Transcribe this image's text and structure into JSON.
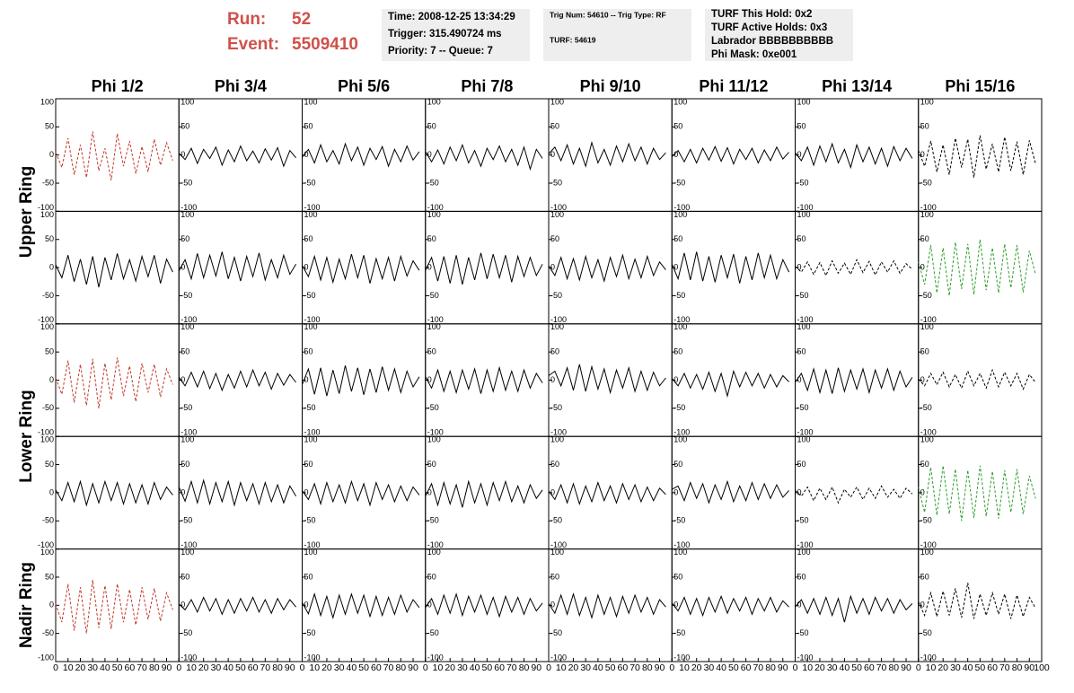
{
  "header": {
    "run_label": "Run:",
    "run": 52,
    "event_label": "Event:",
    "event": 5509410,
    "box1": [
      "Time: 2008-12-25 13:34:29",
      "Trigger: 315.490724 ms",
      "Priority: 7 -- Queue: 7"
    ],
    "box2": [
      "Trig Num: 54610 -- Trig Type: RF",
      "TURF: 54619"
    ],
    "box3": [
      "TURF This Hold: 0x2",
      "TURF Active Holds: 0x3",
      "Labrador BBBBBBBBBB",
      "Phi Mask: 0xe001"
    ]
  },
  "chart_data": {
    "type": "line",
    "columns": [
      "Phi 1/2",
      "Phi 3/4",
      "Phi 5/6",
      "Phi 7/8",
      "Phi 9/10",
      "Phi 11/12",
      "Phi 13/14",
      "Phi 15/16"
    ],
    "row_labels": [
      "Upper Ring",
      "Lower Ring",
      "Nadir Ring"
    ],
    "xlim": [
      0,
      100
    ],
    "xticks": [
      0,
      10,
      20,
      30,
      40,
      50,
      60,
      70,
      80,
      90,
      100
    ],
    "ylim": [
      -100,
      100
    ],
    "yticks": [
      -100,
      -50,
      0,
      50,
      100
    ],
    "x": [
      0,
      5,
      10,
      15,
      20,
      25,
      30,
      35,
      40,
      45,
      50,
      55,
      60,
      65,
      70,
      75,
      80,
      85,
      90,
      95
    ],
    "panels": [
      [
        {
          "color": "#c0392b",
          "dashed": true,
          "values": [
            5,
            -22,
            30,
            -35,
            18,
            -40,
            42,
            -28,
            12,
            -45,
            38,
            -20,
            25,
            -33,
            15,
            -30,
            28,
            -18,
            22,
            -10
          ]
        },
        {
          "color": "#000000",
          "dashed": false,
          "values": [
            3,
            -8,
            12,
            -15,
            10,
            -6,
            14,
            -18,
            9,
            -12,
            16,
            -10,
            7,
            -14,
            11,
            -9,
            13,
            -20,
            8,
            -5
          ]
        },
        {
          "color": "#000000",
          "dashed": false,
          "values": [
            -4,
            10,
            -14,
            18,
            -12,
            8,
            -16,
            20,
            -10,
            14,
            -18,
            12,
            -8,
            15,
            -20,
            10,
            -12,
            16,
            -9,
            6
          ]
        },
        {
          "color": "#000000",
          "dashed": false,
          "values": [
            6,
            -12,
            9,
            -16,
            14,
            -10,
            18,
            -14,
            8,
            -20,
            12,
            -8,
            16,
            -12,
            10,
            -18,
            14,
            -25,
            10,
            -6
          ]
        },
        {
          "color": "#000000",
          "dashed": false,
          "values": [
            2,
            14,
            -10,
            18,
            -16,
            12,
            -20,
            22,
            -14,
            10,
            -18,
            16,
            -12,
            20,
            -10,
            14,
            -16,
            12,
            -8,
            4
          ]
        },
        {
          "color": "#000000",
          "dashed": false,
          "values": [
            -3,
            8,
            -12,
            10,
            -14,
            12,
            -9,
            15,
            -11,
            13,
            -16,
            10,
            -8,
            12,
            -14,
            9,
            -10,
            14,
            -7,
            5
          ]
        },
        {
          "color": "#000000",
          "dashed": false,
          "values": [
            4,
            -10,
            14,
            -18,
            16,
            -12,
            20,
            -14,
            10,
            -22,
            18,
            -12,
            14,
            -16,
            12,
            -20,
            15,
            -10,
            12,
            -6
          ]
        },
        {
          "color": "#000000",
          "dashed": true,
          "values": [
            8,
            -20,
            25,
            -30,
            18,
            -35,
            30,
            -22,
            28,
            -40,
            35,
            -25,
            20,
            -30,
            32,
            -28,
            24,
            -35,
            26,
            -15
          ]
        }
      ],
      [
        {
          "color": "#000000",
          "dashed": false,
          "values": [
            5,
            -18,
            22,
            -25,
            15,
            -30,
            20,
            -35,
            18,
            -22,
            25,
            -20,
            14,
            -24,
            20,
            -16,
            22,
            -28,
            15,
            -8
          ]
        },
        {
          "color": "#000000",
          "dashed": false,
          "values": [
            -6,
            14,
            -20,
            25,
            -18,
            22,
            -15,
            28,
            -20,
            18,
            -24,
            20,
            -16,
            26,
            -22,
            14,
            -18,
            22,
            -12,
            6
          ]
        },
        {
          "color": "#000000",
          "dashed": false,
          "values": [
            4,
            -16,
            20,
            -22,
            18,
            -26,
            15,
            -20,
            24,
            -18,
            22,
            -28,
            16,
            -20,
            18,
            -24,
            20,
            -15,
            12,
            -5
          ]
        },
        {
          "color": "#000000",
          "dashed": false,
          "values": [
            -5,
            18,
            -24,
            20,
            -28,
            22,
            -30,
            18,
            -22,
            26,
            -20,
            24,
            -18,
            22,
            -26,
            20,
            -16,
            18,
            -14,
            6
          ]
        },
        {
          "color": "#000000",
          "dashed": false,
          "values": [
            3,
            -14,
            18,
            -20,
            16,
            -22,
            20,
            -18,
            14,
            -24,
            18,
            -16,
            22,
            -20,
            15,
            -18,
            20,
            -14,
            10,
            -4
          ]
        },
        {
          "color": "#000000",
          "dashed": false,
          "values": [
            6,
            -20,
            26,
            -22,
            28,
            -24,
            20,
            -26,
            22,
            -18,
            24,
            -28,
            20,
            -22,
            26,
            -18,
            22,
            -20,
            14,
            -8
          ]
        },
        {
          "color": "#000000",
          "dashed": true,
          "values": [
            2,
            -8,
            10,
            -12,
            9,
            -14,
            12,
            -10,
            8,
            -12,
            14,
            -9,
            11,
            -13,
            10,
            -8,
            12,
            -10,
            7,
            -3
          ]
        },
        {
          "color": "#2e9e2e",
          "dashed": true,
          "values": [
            10,
            -30,
            40,
            -45,
            35,
            -50,
            45,
            -38,
            42,
            -48,
            50,
            -40,
            35,
            -45,
            42,
            -36,
            40,
            -44,
            30,
            -12
          ]
        }
      ],
      [
        {
          "color": "#c0392b",
          "dashed": true,
          "values": [
            4,
            -25,
            35,
            -40,
            28,
            -45,
            38,
            -50,
            30,
            -35,
            40,
            -28,
            25,
            -38,
            30,
            -22,
            28,
            -30,
            20,
            -8
          ]
        },
        {
          "color": "#000000",
          "dashed": false,
          "values": [
            5,
            -10,
            14,
            -12,
            16,
            -15,
            12,
            -18,
            10,
            -14,
            16,
            -12,
            18,
            -10,
            14,
            -16,
            12,
            -9,
            10,
            -4
          ]
        },
        {
          "color": "#000000",
          "dashed": false,
          "values": [
            -8,
            20,
            -25,
            22,
            -28,
            18,
            -24,
            26,
            -20,
            22,
            -26,
            20,
            -22,
            24,
            -18,
            20,
            -22,
            16,
            -12,
            6
          ]
        },
        {
          "color": "#000000",
          "dashed": false,
          "values": [
            6,
            -14,
            18,
            -20,
            16,
            -22,
            18,
            -16,
            20,
            -24,
            18,
            -20,
            22,
            -18,
            16,
            -20,
            18,
            -14,
            12,
            -5
          ]
        },
        {
          "color": "#000000",
          "dashed": false,
          "values": [
            8,
            16,
            -10,
            22,
            -18,
            28,
            -20,
            24,
            -16,
            20,
            -22,
            18,
            -14,
            22,
            -20,
            16,
            -18,
            14,
            -10,
            4
          ]
        },
        {
          "color": "#000000",
          "dashed": false,
          "values": [
            3,
            -10,
            12,
            -14,
            10,
            -16,
            14,
            -20,
            12,
            -28,
            16,
            -12,
            14,
            -10,
            12,
            -14,
            10,
            -12,
            8,
            -3
          ]
        },
        {
          "color": "#000000",
          "dashed": false,
          "values": [
            -4,
            12,
            -18,
            20,
            -22,
            18,
            -24,
            22,
            -20,
            18,
            -16,
            20,
            -22,
            18,
            -14,
            20,
            -18,
            16,
            -12,
            5
          ]
        },
        {
          "color": "#000000",
          "dashed": true,
          "values": [
            2,
            -10,
            12,
            -8,
            14,
            -12,
            10,
            -14,
            16,
            -10,
            12,
            -14,
            18,
            -12,
            14,
            -10,
            12,
            -16,
            10,
            -4
          ]
        }
      ],
      [
        {
          "color": "#000000",
          "dashed": false,
          "values": [
            5,
            -14,
            18,
            -16,
            20,
            -22,
            16,
            -18,
            20,
            -14,
            18,
            -20,
            16,
            -18,
            14,
            -20,
            18,
            -12,
            10,
            -4
          ]
        },
        {
          "color": "#000000",
          "dashed": false,
          "values": [
            10,
            -15,
            20,
            -18,
            22,
            -20,
            18,
            -16,
            20,
            -22,
            18,
            -14,
            16,
            -20,
            18,
            -16,
            14,
            -18,
            12,
            -6
          ]
        },
        {
          "color": "#000000",
          "dashed": false,
          "values": [
            4,
            -12,
            16,
            -20,
            18,
            -16,
            14,
            -18,
            20,
            -14,
            16,
            -22,
            18,
            -12,
            14,
            -16,
            12,
            -14,
            10,
            -4
          ]
        },
        {
          "color": "#000000",
          "dashed": false,
          "values": [
            -6,
            16,
            -22,
            18,
            -20,
            14,
            -26,
            20,
            -18,
            16,
            -22,
            18,
            -14,
            20,
            -16,
            12,
            -18,
            14,
            -10,
            5
          ]
        },
        {
          "color": "#000000",
          "dashed": false,
          "values": [
            3,
            -12,
            14,
            -18,
            16,
            -20,
            12,
            -16,
            18,
            -14,
            12,
            -18,
            16,
            -12,
            14,
            -16,
            10,
            -14,
            8,
            -3
          ]
        },
        {
          "color": "#000000",
          "dashed": false,
          "values": [
            6,
            12,
            -14,
            18,
            -10,
            16,
            -18,
            14,
            -12,
            20,
            -16,
            12,
            -14,
            18,
            -12,
            16,
            -10,
            14,
            -8,
            4
          ]
        },
        {
          "color": "#000000",
          "dashed": true,
          "values": [
            4,
            -6,
            10,
            -14,
            8,
            -12,
            10,
            -18,
            6,
            -8,
            10,
            -12,
            8,
            -10,
            12,
            -8,
            6,
            -10,
            8,
            -2
          ]
        },
        {
          "color": "#2e9e2e",
          "dashed": true,
          "values": [
            10,
            -35,
            45,
            -40,
            48,
            -38,
            42,
            -50,
            40,
            -45,
            48,
            -42,
            38,
            -46,
            40,
            -35,
            42,
            -38,
            30,
            -10
          ]
        }
      ],
      [
        {
          "color": "#c0392b",
          "dashed": true,
          "values": [
            3,
            -30,
            38,
            -45,
            32,
            -50,
            45,
            -40,
            35,
            -42,
            38,
            -30,
            28,
            -35,
            32,
            -25,
            30,
            -28,
            22,
            -8
          ]
        },
        {
          "color": "#000000",
          "dashed": false,
          "values": [
            2,
            -8,
            10,
            -12,
            14,
            -10,
            12,
            -16,
            10,
            -14,
            12,
            -10,
            14,
            -12,
            10,
            -14,
            12,
            -8,
            10,
            -3
          ]
        },
        {
          "color": "#000000",
          "dashed": false,
          "values": [
            5,
            -15,
            20,
            -18,
            16,
            -22,
            18,
            -16,
            20,
            -14,
            18,
            -20,
            16,
            -18,
            14,
            -16,
            18,
            -12,
            10,
            -4
          ]
        },
        {
          "color": "#000000",
          "dashed": false,
          "values": [
            -4,
            12,
            -16,
            18,
            -14,
            20,
            -18,
            16,
            -12,
            18,
            -16,
            14,
            -20,
            16,
            -12,
            14,
            -16,
            12,
            -10,
            4
          ]
        },
        {
          "color": "#000000",
          "dashed": false,
          "values": [
            3,
            -14,
            18,
            -16,
            20,
            -18,
            14,
            -22,
            18,
            -16,
            14,
            -20,
            16,
            -14,
            18,
            -12,
            14,
            -16,
            10,
            -3
          ]
        },
        {
          "color": "#000000",
          "dashed": false,
          "values": [
            4,
            -10,
            14,
            -16,
            12,
            -18,
            14,
            -12,
            16,
            -14,
            12,
            -10,
            14,
            -16,
            12,
            -10,
            14,
            -12,
            8,
            -3
          ]
        },
        {
          "color": "#000000",
          "dashed": false,
          "values": [
            -3,
            10,
            -14,
            12,
            -16,
            14,
            -18,
            12,
            -30,
            16,
            -14,
            12,
            -16,
            14,
            -10,
            12,
            -14,
            10,
            -8,
            3
          ]
        },
        {
          "color": "#000000",
          "dashed": true,
          "values": [
            6,
            -18,
            22,
            -20,
            25,
            -18,
            30,
            -22,
            40,
            -24,
            20,
            -18,
            22,
            -16,
            20,
            -24,
            18,
            -20,
            14,
            -5
          ]
        }
      ]
    ]
  }
}
